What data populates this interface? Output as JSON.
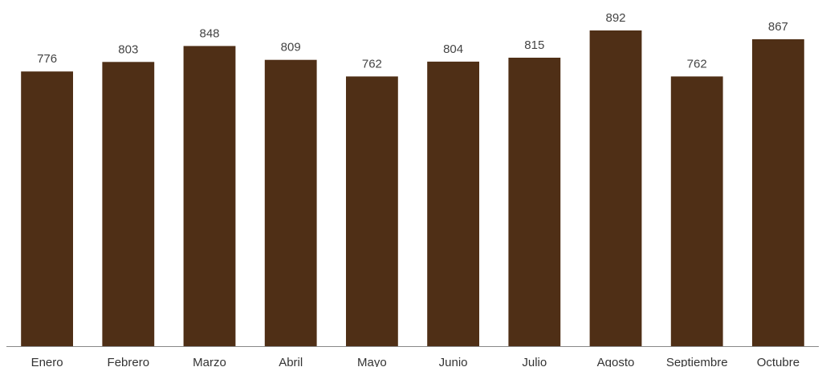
{
  "chart_data": {
    "type": "bar",
    "categories": [
      "Enero",
      "Febrero",
      "Marzo",
      "Abril",
      "Mayo",
      "Junio",
      "Julio",
      "Agosto",
      "Septiembre",
      "Octubre"
    ],
    "values": [
      776,
      803,
      848,
      809,
      762,
      804,
      815,
      892,
      762,
      867
    ],
    "title": "",
    "xlabel": "",
    "ylabel": "",
    "ylim": [
      0,
      900
    ],
    "grid": false,
    "legend": "none",
    "data_labels": true,
    "bar_color": "#4f2f16",
    "axis_color": "#888888"
  }
}
